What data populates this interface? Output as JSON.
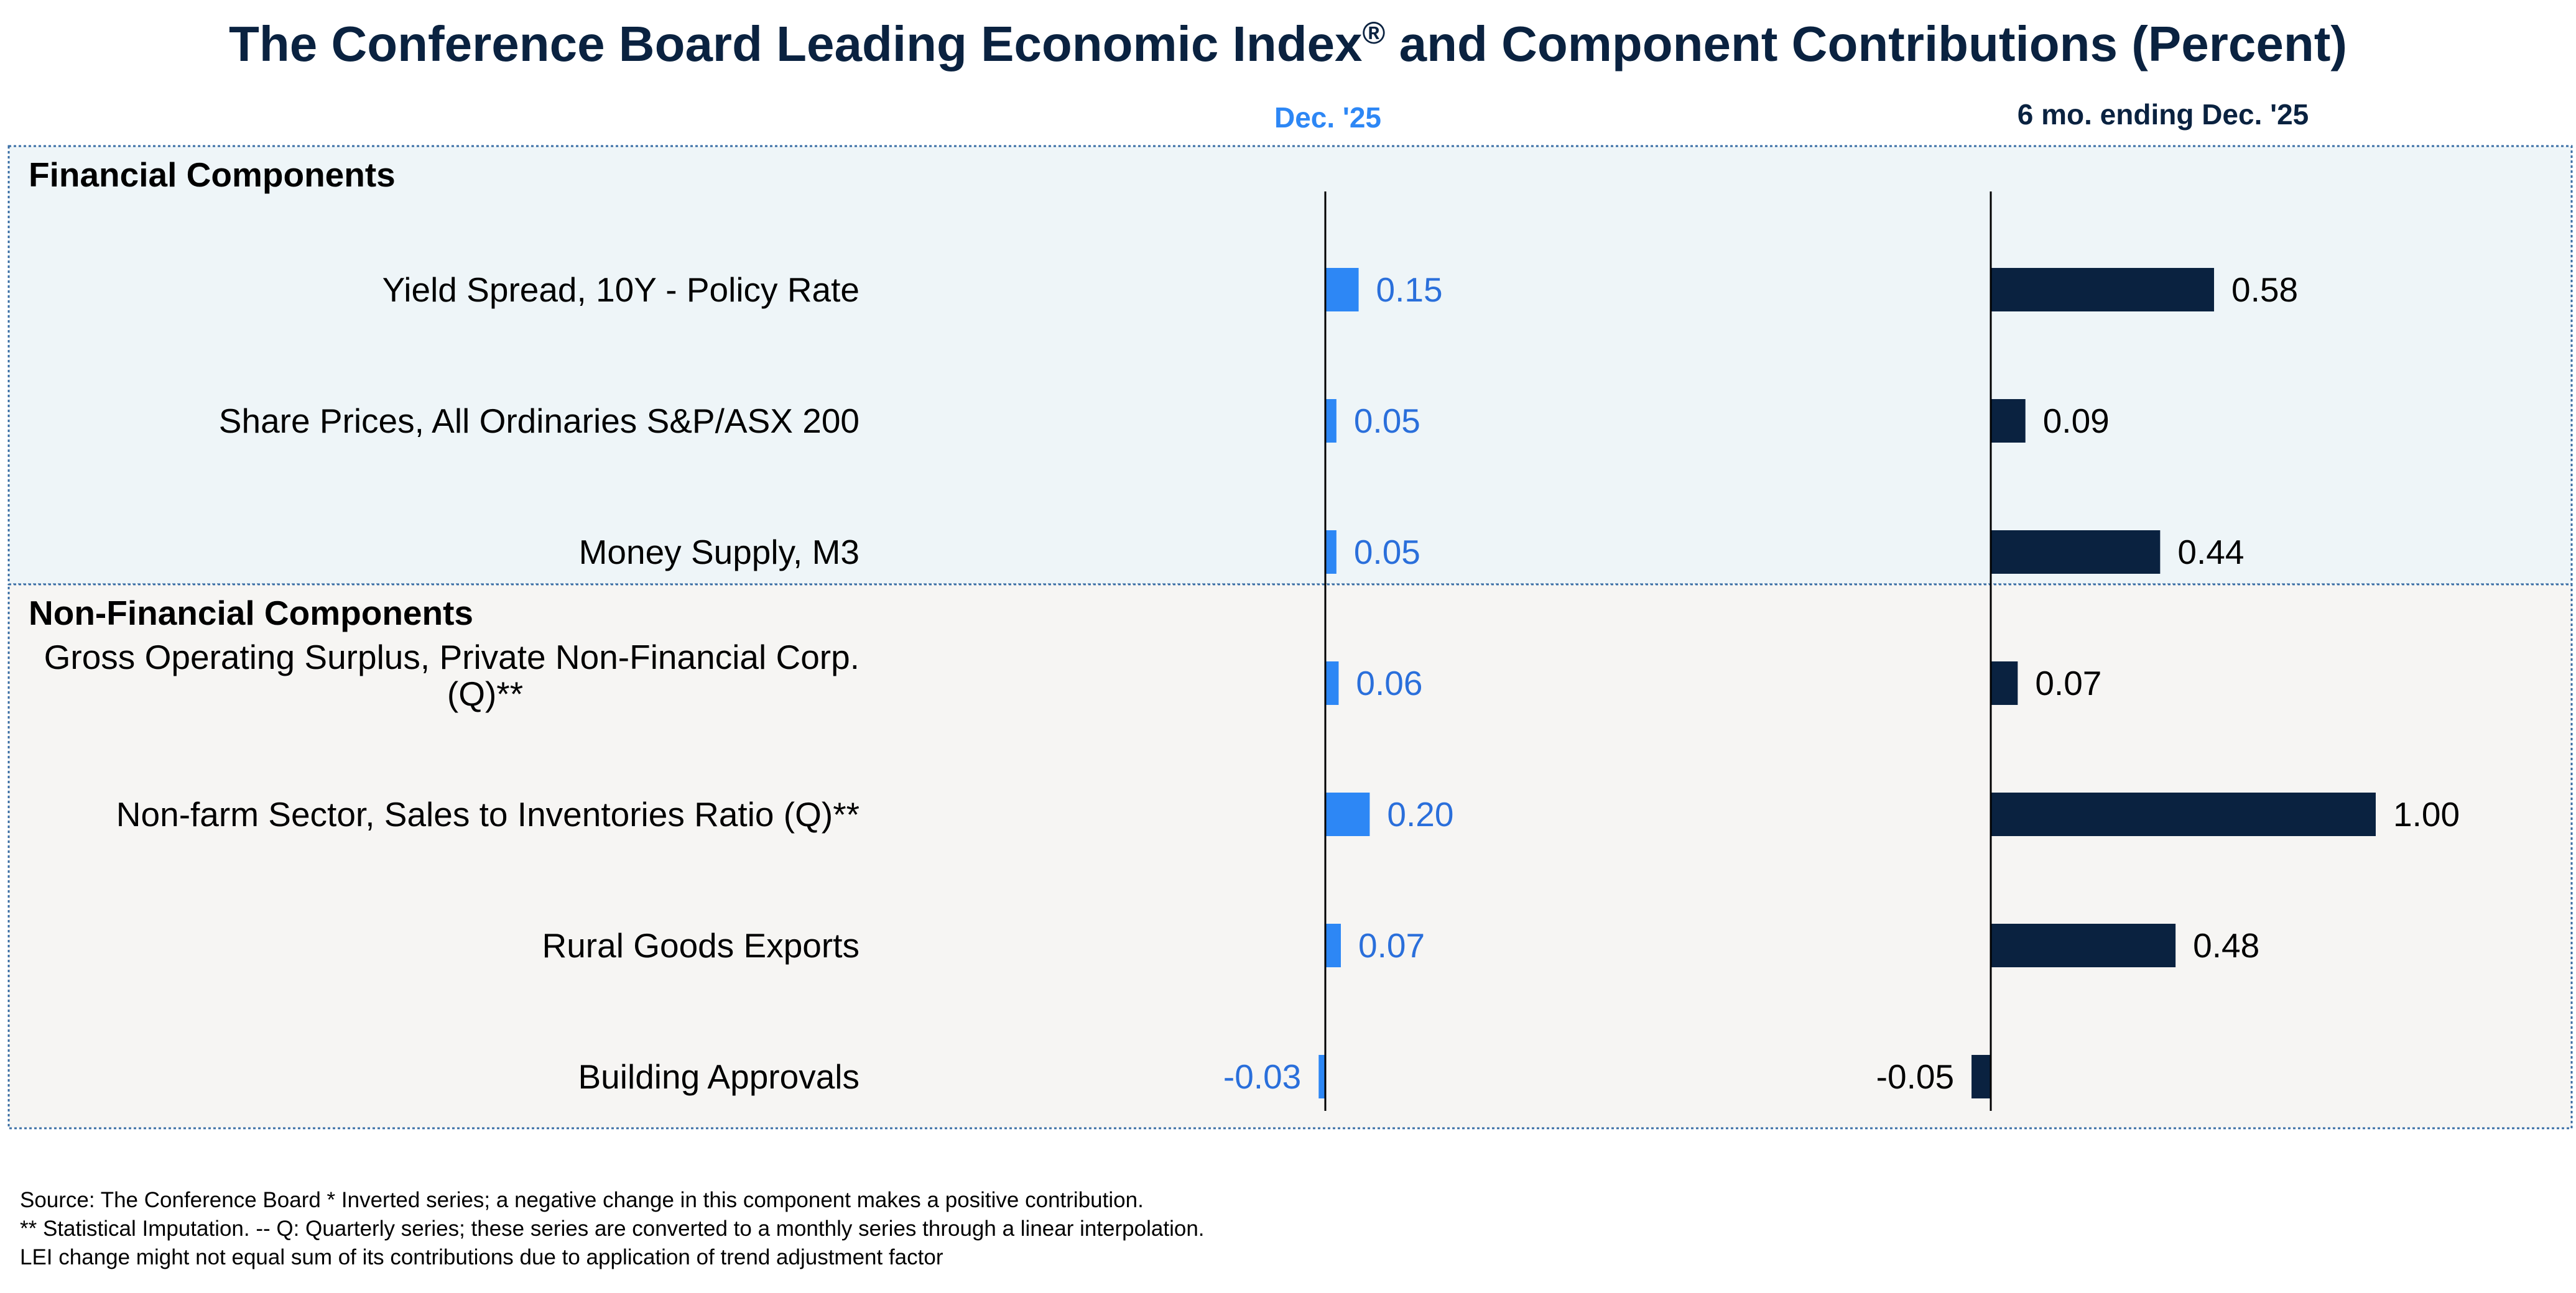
{
  "chart_data": {
    "type": "bar",
    "orientation": "horizontal",
    "title": "The Conference Board Leading Economic Index® and Component Contributions (Percent)",
    "groups": [
      {
        "name": "Financial Components",
        "background": "#eef5f8"
      },
      {
        "name": "Non-Financial Components",
        "background": "#f6f5f3"
      }
    ],
    "categories": [
      {
        "label": "Yield Spread, 10Y - Policy Rate",
        "group": 0
      },
      {
        "label": "Share Prices, All Ordinaries S&P/ASX 200",
        "group": 0
      },
      {
        "label": "Money Supply, M3",
        "group": 0
      },
      {
        "label": [
          "Gross Operating Surplus, Private Non-Financial Corp.",
          "(Q)**"
        ],
        "group": 1
      },
      {
        "label": "Non-farm Sector, Sales to Inventories Ratio (Q)**",
        "group": 1
      },
      {
        "label": "Rural Goods Exports",
        "group": 1
      },
      {
        "label": "Building Approvals",
        "group": 1
      }
    ],
    "series": [
      {
        "name": "Dec. '25",
        "color": "#2d87f5",
        "label_color": "#2a6fdb",
        "values": [
          0.15,
          0.05,
          0.05,
          0.06,
          0.2,
          0.07,
          -0.03
        ],
        "value_labels": [
          "0.15",
          "0.05",
          "0.05",
          "0.06",
          "0.20",
          "0.07",
          "-0.03"
        ]
      },
      {
        "name": "6 mo. ending Dec. '25",
        "color": "#0a2240",
        "label_color": "#000000",
        "values": [
          0.58,
          0.09,
          0.44,
          0.07,
          1.0,
          0.48,
          -0.05
        ],
        "value_labels": [
          "0.58",
          "0.09",
          "0.44",
          "0.07",
          "1.00",
          "0.48",
          "-0.05"
        ]
      }
    ]
  },
  "footnotes": [
    "Source: The Conference Board *  Inverted series; a negative change in this component makes a positive contribution.",
    "**  Statistical Imputation. -- Q: Quarterly series; these series are converted to a monthly series through a linear interpolation.",
    "LEI change might not equal sum of its contributions due to application of trend adjustment factor"
  ]
}
